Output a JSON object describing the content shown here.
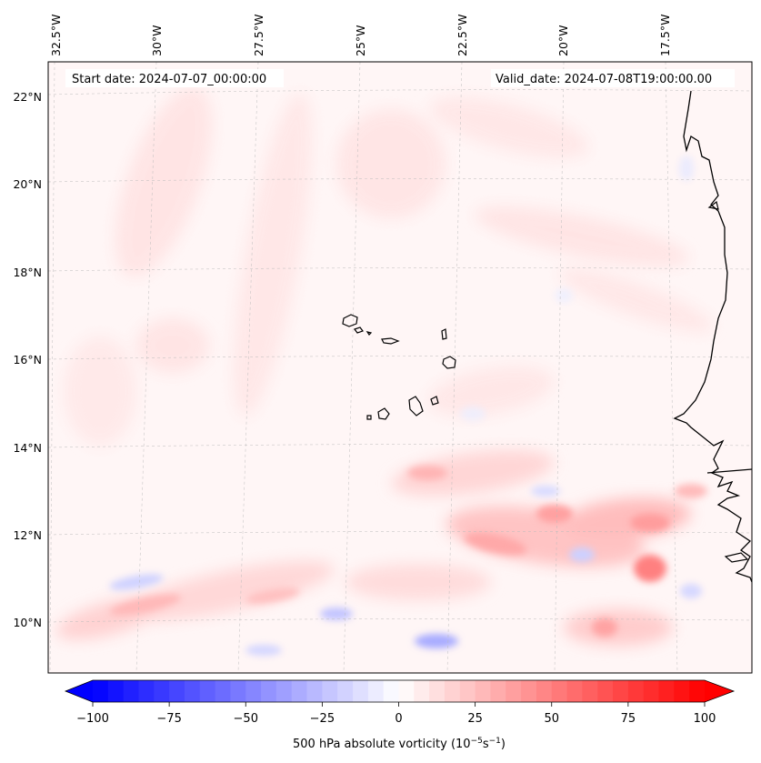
{
  "map": {
    "start_date": "Start date: 2024-07-07_00:00:00",
    "valid_date": "Valid_date: 2024-07-08T19:00:00.00",
    "lon_labels": [
      "32.5°W",
      "30°W",
      "27.5°W",
      "25°W",
      "22.5°W",
      "20°W",
      "17.5°W"
    ],
    "lat_labels": [
      "22°N",
      "20°N",
      "18°N",
      "16°N",
      "14°N",
      "12°N",
      "10°N"
    ]
  },
  "colorbar": {
    "ticks": [
      "−100",
      "−75",
      "−50",
      "−25",
      "0",
      "25",
      "50",
      "75",
      "100"
    ],
    "label_main": "500 hPa absolute vorticity (10",
    "label_exp1": "−5",
    "label_mid": "s",
    "label_exp2": "−1",
    "label_end": ")",
    "color_min": "#0000ff",
    "color_mid": "#ffffff",
    "color_max": "#ff0000"
  }
}
